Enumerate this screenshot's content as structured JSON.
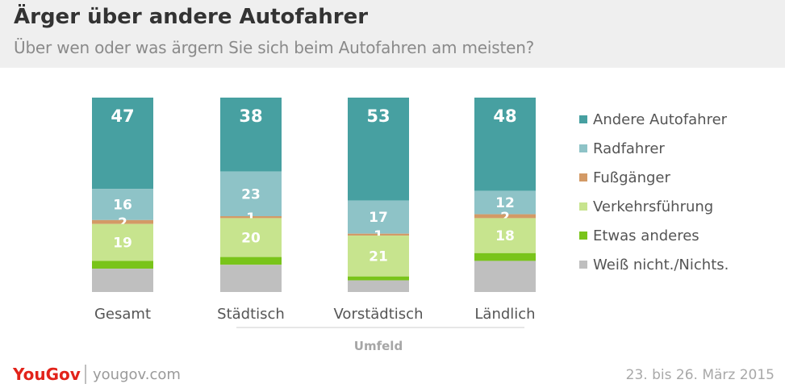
{
  "header": {
    "title": "Ärger über andere Autofahrer",
    "subtitle": "Über wen oder was ärgern Sie sich beim Autofahren am meisten?"
  },
  "chart_data": {
    "type": "bar",
    "stacked": true,
    "categories": [
      "Gesamt",
      "Städtisch",
      "Vorstädtisch",
      "Ländlich"
    ],
    "xlabel": "Umfeld",
    "ylim": [
      0,
      100
    ],
    "legend_position": "right",
    "series": [
      {
        "name": "Andere Autofahrer",
        "color": "#47a0a1",
        "values": [
          47,
          38,
          53,
          48
        ],
        "labels": [
          "47",
          "38",
          "53",
          "48"
        ]
      },
      {
        "name": "Radfahrer",
        "color": "#8ec3c7",
        "values": [
          16,
          23,
          17,
          12
        ],
        "labels": [
          "16",
          "23",
          "17",
          "12"
        ]
      },
      {
        "name": "Fußgänger",
        "color": "#d39a66",
        "values": [
          2,
          1,
          1,
          2
        ],
        "labels": [
          "2",
          "1",
          "1",
          "2"
        ]
      },
      {
        "name": "Verkehrsführung",
        "color": "#c7e48e",
        "values": [
          19,
          20,
          21,
          18
        ],
        "labels": [
          "19",
          "20",
          "21",
          "18"
        ]
      },
      {
        "name": "Etwas anderes",
        "color": "#79c41a",
        "values": [
          4,
          4,
          2,
          4
        ],
        "labels": [
          "",
          "",
          "",
          ""
        ]
      },
      {
        "name": "Weiß nicht./Nichts.",
        "color": "#bfbfbf",
        "values": [
          12,
          14,
          6,
          16
        ],
        "labels": [
          "",
          "",
          "",
          ""
        ]
      }
    ]
  },
  "footer": {
    "brand": "YouGov",
    "site": "yougov.com",
    "date": "23. bis 26. März 2015"
  }
}
